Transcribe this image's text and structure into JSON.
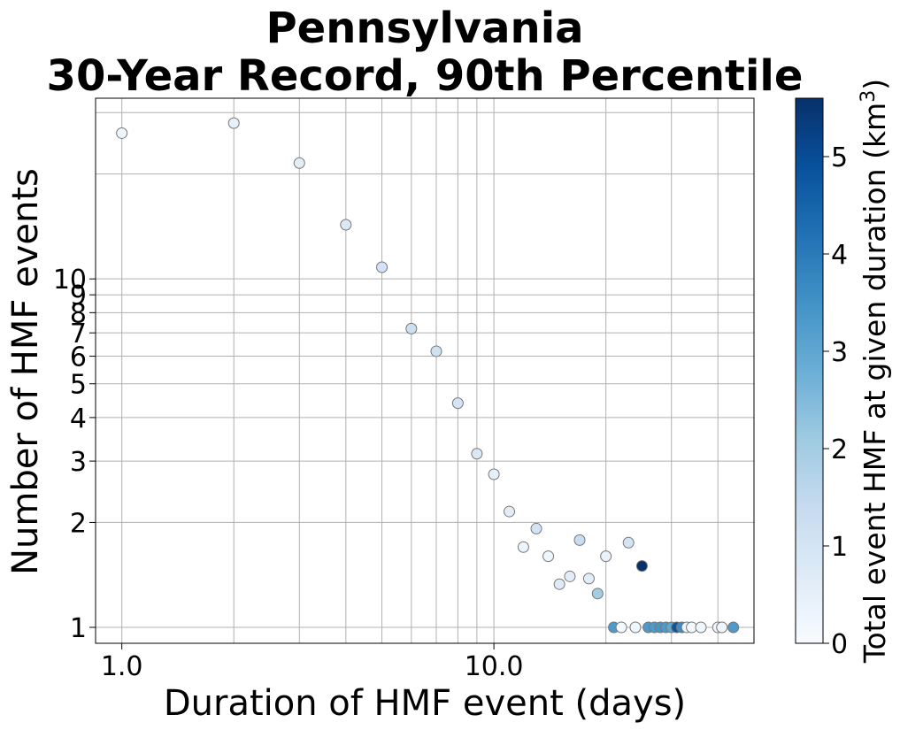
{
  "chart_data": {
    "type": "scatter",
    "title_line1": "Pennsylvania",
    "title_line2": "30-Year Record, 90th Percentile",
    "xlabel": "Duration of HMF event (days)",
    "ylabel": "Number of HMF events",
    "xscale": "log",
    "yscale": "log",
    "xlim": [
      0.85,
      50
    ],
    "ylim": [
      0.9,
      33
    ],
    "xticks": [
      1,
      10
    ],
    "xtick_labels": [
      "1.0",
      "10.0"
    ],
    "yticks": [
      1,
      2,
      3,
      4,
      5,
      6,
      7,
      8,
      9,
      10
    ],
    "ytick_labels": [
      "1",
      "2",
      "3",
      "4",
      "5",
      "6",
      "7",
      "8",
      "9",
      "10"
    ],
    "grid": true,
    "colorbar": {
      "label": "Total event HMF at given duration (km",
      "label_sup": "3",
      "label_end": ")",
      "min": 0,
      "max": 5.6,
      "ticks": [
        0,
        1,
        2,
        3,
        4,
        5
      ],
      "tick_labels": [
        "0",
        "1",
        "2",
        "3",
        "4",
        "5"
      ],
      "colormap": "Blues"
    },
    "marker_edge_color": "#777777",
    "points": [
      {
        "x": 1,
        "y": 26.2,
        "c": 0.2
      },
      {
        "x": 2,
        "y": 28.0,
        "c": 0.5
      },
      {
        "x": 3,
        "y": 21.5,
        "c": 0.6
      },
      {
        "x": 4,
        "y": 14.3,
        "c": 0.8
      },
      {
        "x": 5,
        "y": 10.8,
        "c": 1.0
      },
      {
        "x": 6,
        "y": 7.2,
        "c": 1.2
      },
      {
        "x": 7,
        "y": 6.2,
        "c": 1.1
      },
      {
        "x": 8,
        "y": 4.4,
        "c": 1.0
      },
      {
        "x": 9,
        "y": 3.15,
        "c": 0.8
      },
      {
        "x": 10,
        "y": 2.75,
        "c": 0.5
      },
      {
        "x": 11,
        "y": 2.15,
        "c": 0.6
      },
      {
        "x": 12,
        "y": 1.7,
        "c": 0.3
      },
      {
        "x": 13,
        "y": 1.92,
        "c": 1.0
      },
      {
        "x": 14,
        "y": 1.6,
        "c": 0.2
      },
      {
        "x": 15,
        "y": 1.33,
        "c": 0.7
      },
      {
        "x": 16,
        "y": 1.4,
        "c": 0.6
      },
      {
        "x": 17,
        "y": 1.78,
        "c": 1.3
      },
      {
        "x": 18,
        "y": 1.38,
        "c": 0.6
      },
      {
        "x": 19,
        "y": 1.25,
        "c": 2.0
      },
      {
        "x": 20,
        "y": 1.6,
        "c": 0.4
      },
      {
        "x": 21,
        "y": 1.0,
        "c": 3.3
      },
      {
        "x": 22,
        "y": 1.0,
        "c": 0.1
      },
      {
        "x": 23,
        "y": 1.75,
        "c": 1.0
      },
      {
        "x": 24,
        "y": 1.0,
        "c": 0.2
      },
      {
        "x": 25,
        "y": 1.5,
        "c": 5.6
      },
      {
        "x": 26,
        "y": 1.0,
        "c": 3.3
      },
      {
        "x": 27,
        "y": 1.0,
        "c": 3.3
      },
      {
        "x": 28,
        "y": 1.0,
        "c": 3.4
      },
      {
        "x": 29,
        "y": 1.0,
        "c": 3.3
      },
      {
        "x": 30,
        "y": 1.0,
        "c": 3.0
      },
      {
        "x": 31,
        "y": 1.0,
        "c": 4.8
      },
      {
        "x": 32,
        "y": 1.0,
        "c": 3.6
      },
      {
        "x": 33,
        "y": 1.0,
        "c": 0.2
      },
      {
        "x": 34,
        "y": 1.0,
        "c": 0.1
      },
      {
        "x": 36,
        "y": 1.0,
        "c": 0.2
      },
      {
        "x": 40,
        "y": 1.0,
        "c": 0.2
      },
      {
        "x": 41,
        "y": 1.0,
        "c": 0.2
      },
      {
        "x": 44,
        "y": 1.0,
        "c": 3.3
      }
    ]
  }
}
